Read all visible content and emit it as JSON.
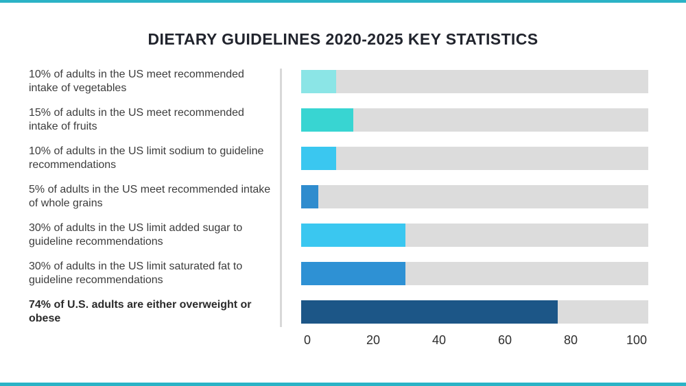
{
  "page": {
    "accent_color": "#2BB3C6",
    "background_color": "#FFFFFF"
  },
  "chart_data": {
    "type": "bar",
    "orientation": "horizontal",
    "title": "DIETARY GUIDELINES 2020-2025 KEY STATISTICS",
    "xlabel": "",
    "ylabel": "",
    "xlim": [
      0,
      100
    ],
    "x_ticks": [
      "0",
      "20",
      "40",
      "60",
      "80",
      "100"
    ],
    "grid": false,
    "legend_position": "none",
    "track_color": "#DCDCDC",
    "categories": [
      "10% of adults in the US meet recommended intake of vegetables",
      "15% of adults in the US meet recommended intake of fruits",
      "10% of adults in the US limit sodium to guideline recommendations",
      "5% of adults in the US meet recommended intake of whole grains",
      "30% of adults in the US limit added sugar to guideline recommendations",
      "30% of adults in the US limit saturated fat to guideline recommendations",
      "74% of U.S. adults are either overweight or obese"
    ],
    "values": [
      10,
      15,
      10,
      5,
      30,
      30,
      74
    ],
    "bar_colors": [
      "#8BE5E6",
      "#38D5D2",
      "#3AC7F0",
      "#2F8CCE",
      "#3AC7F0",
      "#2E91D4",
      "#1C5687"
    ],
    "emphasized_category_index": 6
  }
}
